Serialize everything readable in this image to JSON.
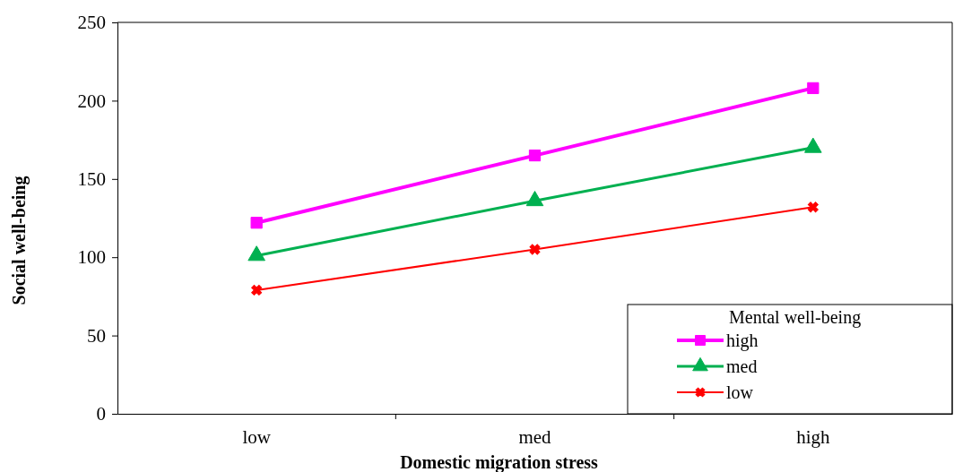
{
  "chart_data": {
    "type": "line",
    "xlabel": "Domestic migration stress",
    "ylabel": "Social well-being",
    "legend_title": "Mental well-being",
    "legend": "bottom right",
    "categories": [
      "low",
      "med",
      "high"
    ],
    "ylim": [
      0,
      250
    ],
    "yticks": [
      0,
      50,
      100,
      150,
      200,
      250
    ],
    "series": [
      {
        "name": "high",
        "color": "#ff00ff",
        "marker": "square",
        "values": [
          122,
          165,
          208
        ]
      },
      {
        "name": "med",
        "color": "#00b050",
        "marker": "triangle",
        "values": [
          101,
          136,
          170
        ]
      },
      {
        "name": "low",
        "color": "#ff0000",
        "marker": "cross",
        "values": [
          79,
          105,
          132
        ]
      }
    ]
  }
}
